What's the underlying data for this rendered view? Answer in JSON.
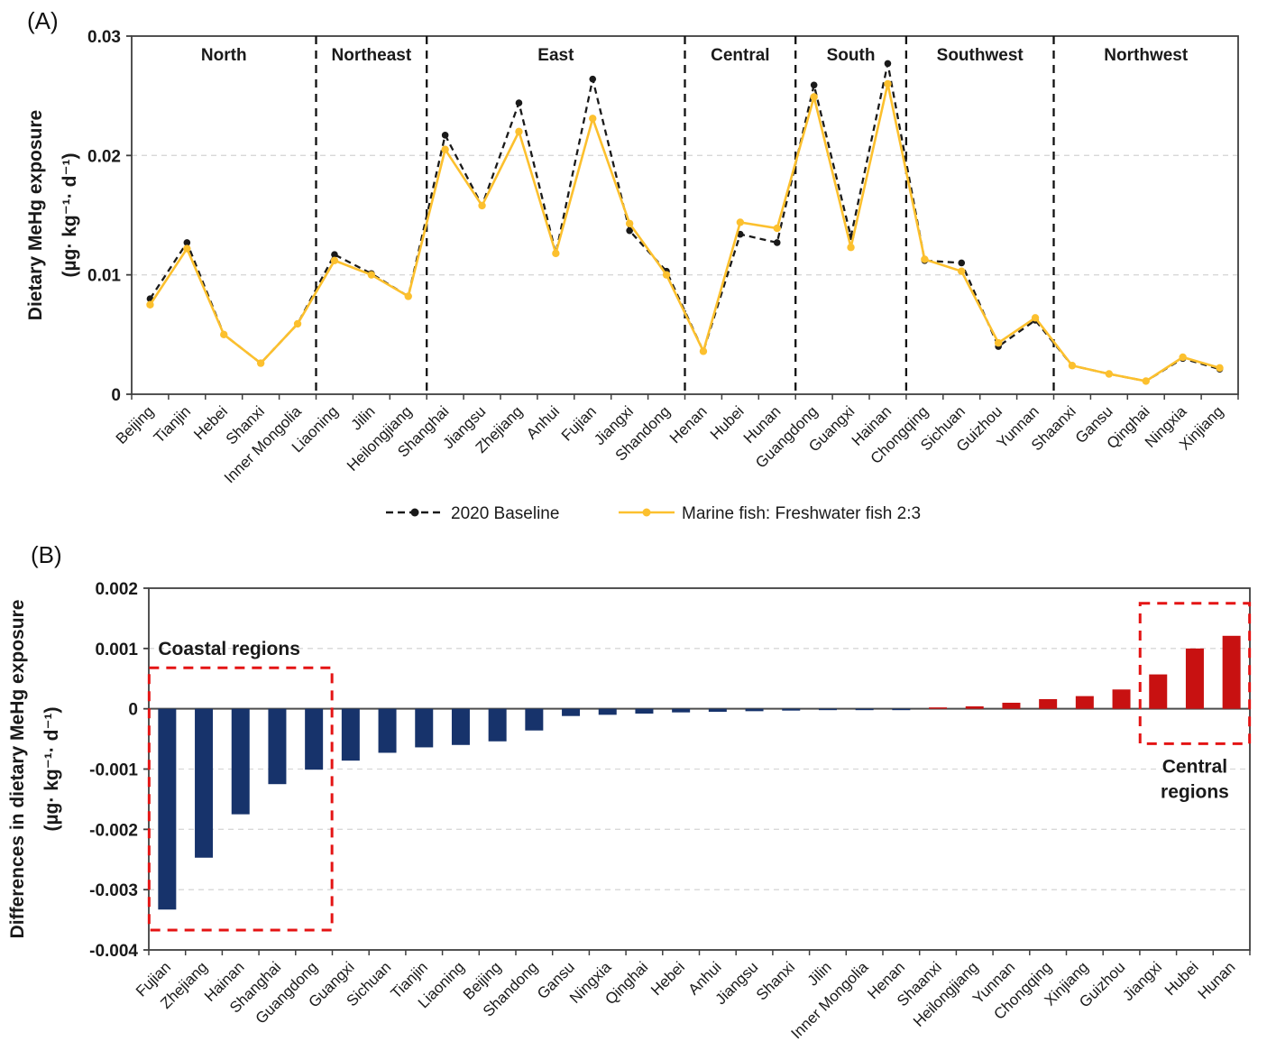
{
  "panel_a": {
    "label": "(A)"
  },
  "panel_b": {
    "label": "(B)"
  },
  "colors": {
    "baseline_black": "#1a1a1a",
    "scenario_yellow": "#fcc02e",
    "bar_negative_navy": "#17336b",
    "bar_positive_red": "#c81111",
    "annotation_red": "#e41414",
    "grid_gray": "#d8d8d8",
    "frame_gray": "#3f3f3f"
  },
  "chart_data": [
    {
      "type": "line",
      "title": "",
      "ylabel_lines": [
        "Dietary MeHg exposure",
        "(µg· kg⁻¹· d⁻¹)"
      ],
      "categories": [
        "Beijing",
        "Tianjin",
        "Hebei",
        "Shanxi",
        "Inner Mongolia",
        "Liaoning",
        "Jilin",
        "Heilongjiang",
        "Shanghai",
        "Jiangsu",
        "Zhejiang",
        "Anhui",
        "Fujian",
        "Jiangxi",
        "Shandong",
        "Henan",
        "Hubei",
        "Hunan",
        "Guangdong",
        "Guangxi",
        "Hainan",
        "Chongqing",
        "Sichuan",
        "Guizhou",
        "Yunnan",
        "Shaanxi",
        "Gansu",
        "Qinghai",
        "Ningxia",
        "Xinjiang"
      ],
      "regions": [
        {
          "label": "North",
          "count": 5
        },
        {
          "label": "Northeast",
          "count": 3
        },
        {
          "label": "East",
          "count": 7
        },
        {
          "label": "Central",
          "count": 3
        },
        {
          "label": "South",
          "count": 3
        },
        {
          "label": "Southwest",
          "count": 4
        },
        {
          "label": "Northwest",
          "count": 5
        }
      ],
      "series": [
        {
          "name": "2020 Baseline",
          "style": "dashed",
          "color": "#1a1a1a",
          "values": [
            0.008,
            0.0127,
            0.005,
            0.0026,
            0.0059,
            0.0117,
            0.0101,
            0.0082,
            0.0217,
            0.0158,
            0.0244,
            0.0118,
            0.0264,
            0.0137,
            0.0103,
            0.0036,
            0.0134,
            0.0127,
            0.0259,
            0.0132,
            0.0277,
            0.0112,
            0.011,
            0.004,
            0.0062,
            0.0024,
            0.0017,
            0.0011,
            0.003,
            0.0021
          ]
        },
        {
          "name": "Marine fish: Freshwater fish 2:3",
          "style": "solid",
          "color": "#fcc02e",
          "values": [
            0.0075,
            0.0122,
            0.005,
            0.0026,
            0.0059,
            0.0112,
            0.01,
            0.0082,
            0.0205,
            0.0158,
            0.022,
            0.0118,
            0.0231,
            0.0143,
            0.01,
            0.0036,
            0.0144,
            0.0139,
            0.0249,
            0.0123,
            0.026,
            0.0113,
            0.0103,
            0.0043,
            0.0064,
            0.0024,
            0.0017,
            0.0011,
            0.0031,
            0.0022
          ]
        }
      ],
      "ylim": [
        0,
        0.03
      ],
      "yticks": [
        {
          "v": 0,
          "label": "0"
        },
        {
          "v": 0.01,
          "label": "0.01"
        },
        {
          "v": 0.02,
          "label": "0.02"
        },
        {
          "v": 0.03,
          "label": "0.03"
        }
      ],
      "grid_values": [
        0.01,
        0.02
      ],
      "legend_position": "bottom"
    },
    {
      "type": "bar",
      "title": "",
      "ylabel_lines": [
        "Differences in dietary MeHg exposure",
        "(µg· kg⁻¹· d⁻¹)"
      ],
      "categories": [
        "Fujian",
        "Zhejiang",
        "Hainan",
        "Shanghai",
        "Guangdong",
        "Guangxi",
        "Sichuan",
        "Tianjin",
        "Liaoning",
        "Beijing",
        "Shandong",
        "Gansu",
        "Ningxia",
        "Qinghai",
        "Hebei",
        "Anhui",
        "Jiangsu",
        "Shanxi",
        "Jilin",
        "Inner Mongolia",
        "Henan",
        "Shaanxi",
        "Heilongjiang",
        "Yunnan",
        "Chongqing",
        "Xinjiang",
        "Guizhou",
        "Jiangxi",
        "Hubei",
        "Hunan"
      ],
      "values": [
        -0.00333,
        -0.00247,
        -0.00175,
        -0.00125,
        -0.00101,
        -0.00086,
        -0.00073,
        -0.00064,
        -0.0006,
        -0.00054,
        -0.00036,
        -0.00012,
        -0.0001,
        -8e-05,
        -6e-05,
        -5e-05,
        -4e-05,
        -3e-05,
        -2e-05,
        -2e-05,
        -1e-05,
        2e-05,
        4e-05,
        0.0001,
        0.00016,
        0.00021,
        0.00032,
        0.00057,
        0.001,
        0.00121
      ],
      "ylim": [
        -0.004,
        0.002
      ],
      "yticks": [
        {
          "v": 0.002,
          "label": "0.002"
        },
        {
          "v": 0.001,
          "label": "0.001"
        },
        {
          "v": 0,
          "label": "0"
        },
        {
          "v": -0.001,
          "label": "-0.001"
        },
        {
          "v": -0.002,
          "label": "-0.002"
        },
        {
          "v": -0.003,
          "label": "-0.003"
        },
        {
          "v": -0.004,
          "label": "-0.004"
        }
      ],
      "grid_values": [
        0.001,
        -0.001,
        -0.002,
        -0.003
      ],
      "annotations": [
        {
          "name": "coastal-regions-box",
          "label_lines": [
            "Coastal regions"
          ],
          "label_anchor": "above-left",
          "from_cat": 0,
          "to_cat": 4,
          "y_top": 0.00068,
          "y_bottom": -0.00367,
          "color": "#e41414"
        },
        {
          "name": "central-regions-box",
          "label_lines": [
            "Central",
            "regions"
          ],
          "label_anchor": "below-center",
          "from_cat": 27,
          "to_cat": 29,
          "y_top": 0.00175,
          "y_bottom": -0.00058,
          "color": "#e41414"
        }
      ]
    }
  ]
}
